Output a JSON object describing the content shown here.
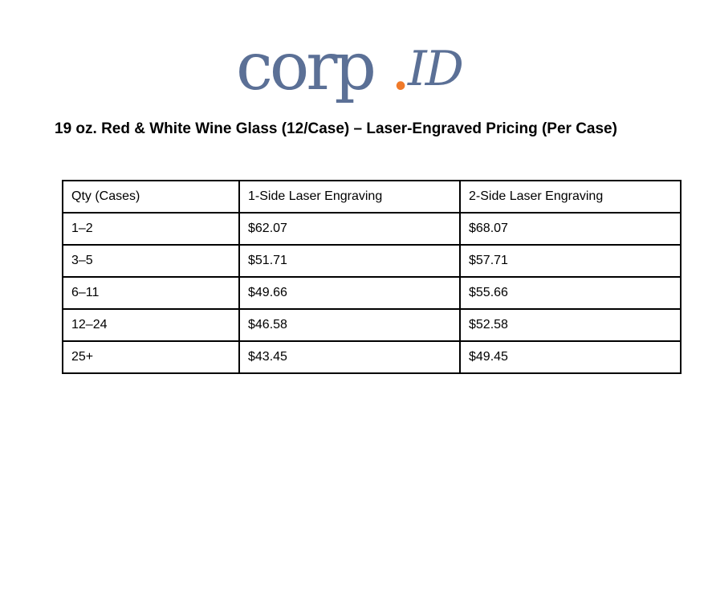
{
  "logo": {
    "main": "corp",
    "dot": ".",
    "script": "ID"
  },
  "title": "19 oz. Red & White Wine Glass (12/Case) – Laser-Engraved Pricing (Per Case)",
  "table": {
    "header": [
      "Qty (Cases)",
      "1-Side Laser Engraving",
      "2-Side Laser Engraving"
    ],
    "rows": [
      [
        "1–2",
        "$62.07",
        "$68.07"
      ],
      [
        "3–5",
        "$51.71",
        "$57.71"
      ],
      [
        "6–11",
        "$49.66",
        "$55.66"
      ],
      [
        "12–24",
        "$46.58",
        "$52.58"
      ],
      [
        "25+",
        "$43.45",
        "$49.45"
      ]
    ]
  }
}
